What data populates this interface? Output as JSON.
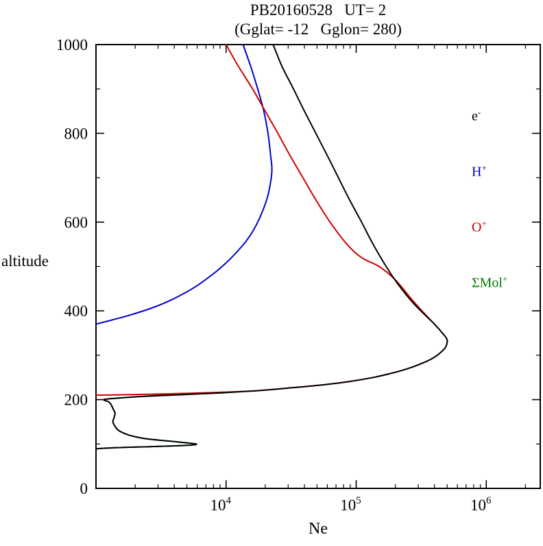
{
  "chart_data": {
    "type": "line",
    "title": "PB20160528   UT= 2",
    "subtitle": "(Gglat= -12   Gglon= 280)",
    "xlabel": "Ne",
    "ylabel": "altitude",
    "x_scale": "log",
    "xlim": [
      1000,
      2600000
    ],
    "ylim": [
      0,
      1000
    ],
    "y_ticks": [
      0,
      200,
      400,
      600,
      800,
      1000
    ],
    "y_minor_step": 100,
    "x_ticks": [
      {
        "value": 10000,
        "base": "10",
        "exp": "4"
      },
      {
        "value": 100000,
        "base": "10",
        "exp": "5"
      },
      {
        "value": 1000000,
        "base": "10",
        "exp": "6"
      }
    ],
    "grid": false,
    "legend_position": "top-right-inside",
    "legend": [
      {
        "base": "e",
        "sup": "-",
        "color": "#000000"
      },
      {
        "base": "H",
        "sup": "+",
        "color": "#0000cc"
      },
      {
        "base": "O",
        "sup": "+",
        "color": "#cc0000"
      },
      {
        "base": "ΣMol",
        "sup": "+",
        "color": "#007a00"
      }
    ],
    "series": [
      {
        "name": "Mol+",
        "color": "#007a00",
        "points": [
          [
            4000,
            212
          ],
          [
            2200,
            207
          ],
          [
            1400,
            203
          ],
          [
            1150,
            200
          ],
          [
            1250,
            195
          ],
          [
            1300,
            190
          ],
          [
            1350,
            180
          ],
          [
            1400,
            170
          ],
          [
            1380,
            160
          ],
          [
            1350,
            150
          ],
          [
            1400,
            140
          ],
          [
            1500,
            130
          ],
          [
            1800,
            120
          ],
          [
            2400,
            112
          ],
          [
            3800,
            106
          ],
          [
            5200,
            102
          ],
          [
            5900,
            100
          ],
          [
            5600,
            98
          ],
          [
            4200,
            96
          ],
          [
            2600,
            94
          ],
          [
            1500,
            92
          ],
          [
            1100,
            90
          ],
          [
            1000,
            89
          ]
        ]
      },
      {
        "name": "H+",
        "color": "#0000cc",
        "points": [
          [
            13500,
            1000
          ],
          [
            15500,
            950
          ],
          [
            17500,
            900
          ],
          [
            19500,
            850
          ],
          [
            21000,
            800
          ],
          [
            22000,
            750
          ],
          [
            22500,
            720
          ],
          [
            22000,
            690
          ],
          [
            20500,
            650
          ],
          [
            17500,
            600
          ],
          [
            14500,
            560
          ],
          [
            11000,
            520
          ],
          [
            8500,
            490
          ],
          [
            6200,
            460
          ],
          [
            4800,
            440
          ],
          [
            3500,
            420
          ],
          [
            2600,
            405
          ],
          [
            1800,
            390
          ],
          [
            1350,
            380
          ],
          [
            1000,
            370
          ]
        ]
      },
      {
        "name": "O+",
        "color": "#cc0000",
        "points": [
          [
            10000,
            1000
          ],
          [
            12500,
            950
          ],
          [
            16000,
            900
          ],
          [
            20000,
            850
          ],
          [
            25000,
            800
          ],
          [
            31000,
            750
          ],
          [
            39000,
            700
          ],
          [
            49000,
            650
          ],
          [
            63000,
            600
          ],
          [
            85000,
            550
          ],
          [
            110000,
            520
          ],
          [
            150000,
            500
          ],
          [
            200000,
            470
          ],
          [
            260000,
            430
          ],
          [
            320000,
            400
          ],
          [
            400000,
            370
          ],
          [
            460000,
            350
          ],
          [
            500000,
            335
          ],
          [
            490000,
            320
          ],
          [
            460000,
            310
          ],
          [
            420000,
            300
          ],
          [
            370000,
            290
          ],
          [
            310000,
            280
          ],
          [
            250000,
            270
          ],
          [
            190000,
            260
          ],
          [
            135000,
            250
          ],
          [
            85000,
            240
          ],
          [
            50000,
            232
          ],
          [
            30000,
            226
          ],
          [
            17000,
            220
          ],
          [
            8000,
            216
          ],
          [
            3500,
            213
          ],
          [
            1600,
            211
          ],
          [
            1000,
            210
          ]
        ]
      },
      {
        "name": "e-",
        "color": "#000000",
        "points": [
          [
            23000,
            1000
          ],
          [
            27000,
            950
          ],
          [
            33000,
            900
          ],
          [
            40000,
            850
          ],
          [
            49000,
            800
          ],
          [
            60000,
            750
          ],
          [
            73000,
            700
          ],
          [
            89000,
            650
          ],
          [
            110000,
            600
          ],
          [
            135000,
            550
          ],
          [
            170000,
            500
          ],
          [
            210000,
            460
          ],
          [
            270000,
            420
          ],
          [
            340000,
            390
          ],
          [
            400000,
            370
          ],
          [
            460000,
            350
          ],
          [
            500000,
            335
          ],
          [
            490000,
            320
          ],
          [
            460000,
            310
          ],
          [
            420000,
            300
          ],
          [
            370000,
            290
          ],
          [
            310000,
            280
          ],
          [
            250000,
            270
          ],
          [
            190000,
            260
          ],
          [
            135000,
            250
          ],
          [
            85000,
            240
          ],
          [
            50000,
            232
          ],
          [
            30000,
            226
          ],
          [
            17000,
            220
          ],
          [
            9000,
            215
          ],
          [
            4500,
            211
          ],
          [
            2200,
            207
          ],
          [
            1400,
            203
          ],
          [
            1150,
            200
          ],
          [
            1250,
            195
          ],
          [
            1300,
            190
          ],
          [
            1350,
            180
          ],
          [
            1400,
            170
          ],
          [
            1380,
            160
          ],
          [
            1350,
            150
          ],
          [
            1400,
            140
          ],
          [
            1500,
            130
          ],
          [
            1800,
            120
          ],
          [
            2400,
            112
          ],
          [
            3800,
            106
          ],
          [
            5200,
            102
          ],
          [
            5900,
            100
          ],
          [
            5600,
            98
          ],
          [
            4200,
            96
          ],
          [
            2600,
            94
          ],
          [
            1500,
            92
          ],
          [
            1100,
            90
          ],
          [
            1000,
            89
          ]
        ]
      }
    ]
  }
}
